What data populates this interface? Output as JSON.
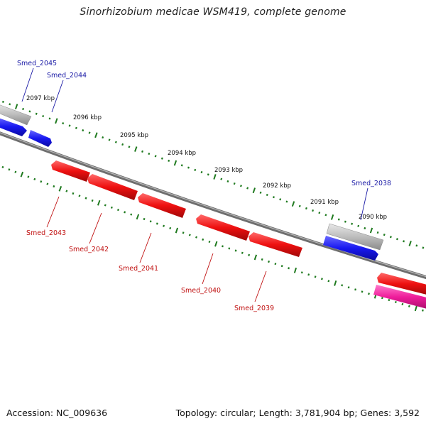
{
  "title": "Sinorhizobium medicae WSM419, complete genome",
  "footer": {
    "accession": "Accession: NC_009636",
    "stats": "Topology: circular; Length: 3,781,904 bp; Genes: 3,592"
  },
  "scale_labels": [
    "2097 kbp",
    "2096 kbp",
    "2095 kbp",
    "2094 kbp",
    "2093 kbp",
    "2092 kbp",
    "2091 kbp",
    "2090 kbp"
  ],
  "gene_labels_top": [
    "Smed_2045",
    "Smed_2044",
    "Smed_2038"
  ],
  "gene_labels_bottom": [
    "Smed_2043",
    "Smed_2042",
    "Smed_2041",
    "Smed_2040",
    "Smed_2039"
  ],
  "colors": {
    "backbone": "#7a7a7a",
    "forward_gene": "#1a1aee",
    "reverse_gene": "#ee1111",
    "pseudo_gene": "#bdbdbd",
    "rna_gene": "#ee2299",
    "tick": "#1f7a1f",
    "label_top": "#1a1aa6",
    "label_bottom": "#c01010"
  }
}
